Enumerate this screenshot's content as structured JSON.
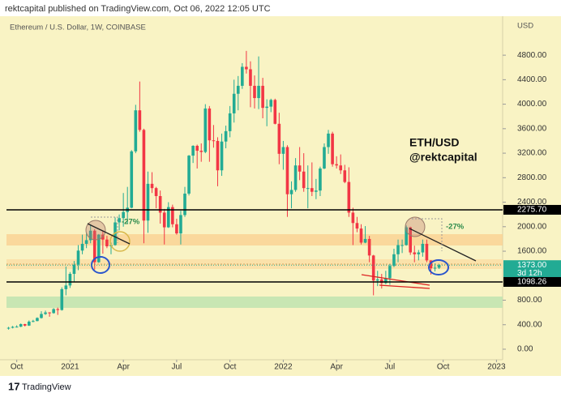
{
  "header": "rektcapital published on TradingView.com, Oct 06, 2022 12:05 UTC",
  "footer": "TradingView",
  "chart_data": {
    "type": "candlestick",
    "title": "Ethereum / U.S. Dollar, 1W, COINBASE",
    "y_unit": "USD",
    "watermark": [
      "ETH/USD",
      "@rektcapital"
    ],
    "annotations": [
      "-27%",
      "-27%"
    ],
    "up_color": "#22ab94",
    "down_color": "#f23645",
    "grid": false,
    "x": [
      0,
      1,
      2,
      3,
      4,
      5,
      6,
      7,
      8,
      9,
      10,
      11,
      12,
      13,
      14,
      15,
      16,
      17,
      18,
      19,
      20,
      21,
      22,
      23,
      24,
      25,
      26,
      27,
      28,
      29,
      30,
      31,
      32,
      33,
      34,
      35,
      36,
      37,
      38,
      39,
      40,
      41,
      42,
      43,
      44,
      45,
      46,
      47,
      48,
      49,
      50,
      51,
      52,
      53,
      54,
      55,
      56,
      57,
      58,
      59,
      60,
      61,
      62,
      63,
      64,
      65,
      66,
      67,
      68,
      69,
      70,
      71,
      72,
      73,
      74,
      75,
      76,
      77,
      78,
      79,
      80,
      81,
      82,
      83,
      84,
      85,
      86,
      87,
      88,
      89,
      90,
      91,
      92,
      93,
      94,
      95,
      96,
      97,
      98,
      99,
      100,
      101,
      102,
      103,
      104,
      105
    ],
    "open": [
      340,
      350,
      365,
      368,
      410,
      385,
      450,
      460,
      510,
      575,
      600,
      590,
      655,
      640,
      980,
      1040,
      1230,
      1380,
      1610,
      1720,
      1780,
      1935,
      1420,
      1870,
      1790,
      1680,
      1700,
      2070,
      2140,
      2240,
      2310,
      3230,
      3900,
      3580,
      2100,
      2700,
      2630,
      2500,
      2230,
      1990,
      2320,
      2040,
      1890,
      2190,
      2540,
      3160,
      3320,
      3240,
      3220,
      3930,
      3410,
      3400,
      2920,
      3390,
      3560,
      3850,
      4170,
      4300,
      4610,
      4570,
      4300,
      4100,
      4300,
      3940,
      3960,
      4070,
      3680,
      3190,
      3300,
      2530,
      2600,
      3000,
      2900,
      2630,
      2630,
      2570,
      2590,
      2950,
      3300,
      3520,
      3020,
      3000,
      2920,
      2730,
      2230,
      2060,
      1970,
      1740,
      1800,
      1530,
      1120,
      1140,
      1080,
      1160,
      1360,
      1550,
      1700,
      1700,
      1990,
      1580,
      1550,
      1580,
      1720,
      1450,
      1320,
      1330
    ],
    "high": [
      365,
      380,
      390,
      420,
      415,
      470,
      480,
      520,
      620,
      630,
      605,
      670,
      680,
      1010,
      1350,
      1260,
      1440,
      1700,
      1870,
      1900,
      2040,
      1960,
      1880,
      1940,
      1850,
      1740,
      2150,
      2200,
      2550,
      2650,
      3250,
      3990,
      4370,
      3600,
      2900,
      2890,
      2650,
      2590,
      2290,
      2400,
      2360,
      2130,
      2260,
      2650,
      3170,
      3330,
      3340,
      3360,
      4000,
      3970,
      3660,
      3460,
      3520,
      3650,
      3970,
      4400,
      4460,
      4670,
      4870,
      4700,
      4470,
      4780,
      4430,
      4080,
      4090,
      4090,
      3860,
      3400,
      3330,
      2740,
      3120,
      3300,
      3200,
      3000,
      3050,
      2780,
      2980,
      3360,
      3580,
      3550,
      3150,
      3180,
      3010,
      2970,
      2310,
      2160,
      2040,
      2010,
      1850,
      1540,
      1280,
      1230,
      1280,
      1390,
      1640,
      1790,
      1790,
      2020,
      2000,
      1690,
      1620,
      1790,
      1790,
      1450,
      1400,
      1390
    ],
    "low": [
      320,
      340,
      355,
      360,
      370,
      380,
      440,
      455,
      500,
      560,
      530,
      580,
      560,
      630,
      880,
      1000,
      1100,
      1290,
      1550,
      1650,
      1730,
      1300,
      1410,
      1560,
      1650,
      1550,
      1690,
      1940,
      2000,
      2050,
      2300,
      3200,
      3550,
      1730,
      1900,
      2550,
      2300,
      2050,
      1710,
      1980,
      1990,
      1870,
      1710,
      2160,
      2510,
      3040,
      2950,
      3060,
      3200,
      3060,
      3290,
      2660,
      2830,
      3280,
      3460,
      3700,
      3900,
      4250,
      4500,
      3950,
      3930,
      3920,
      3770,
      3640,
      3870,
      3670,
      3020,
      2930,
      2160,
      2300,
      2570,
      2760,
      2570,
      2300,
      2500,
      2450,
      2500,
      2940,
      3190,
      2980,
      2950,
      2860,
      2710,
      2160,
      1700,
      1910,
      1710,
      1730,
      1420,
      880,
      1030,
      990,
      1060,
      1050,
      1340,
      1420,
      1570,
      1690,
      1540,
      1420,
      1450,
      1510,
      1420,
      1220,
      1270,
      1310
    ],
    "close": [
      350,
      365,
      368,
      410,
      385,
      450,
      460,
      510,
      575,
      600,
      590,
      655,
      640,
      980,
      1040,
      1230,
      1380,
      1610,
      1720,
      1780,
      1935,
      1420,
      1870,
      1790,
      1680,
      1700,
      2070,
      2140,
      2240,
      2310,
      3230,
      3900,
      3580,
      2100,
      2700,
      2630,
      2500,
      2230,
      1990,
      2320,
      2040,
      1890,
      2190,
      2540,
      3160,
      3320,
      3240,
      3220,
      3930,
      3410,
      3400,
      2920,
      3390,
      3560,
      3850,
      4170,
      4300,
      4610,
      4570,
      4300,
      4100,
      4300,
      3940,
      3960,
      4070,
      3680,
      3190,
      3300,
      2530,
      2600,
      3000,
      2900,
      2630,
      2630,
      2570,
      2590,
      2950,
      3300,
      3520,
      3020,
      3000,
      2920,
      2730,
      2230,
      2060,
      1970,
      1740,
      1800,
      1530,
      1120,
      1140,
      1080,
      1160,
      1360,
      1550,
      1700,
      1700,
      1990,
      1580,
      1550,
      1580,
      1720,
      1450,
      1320,
      1330,
      1373
    ],
    "xlim": [
      -0.5,
      120.5
    ],
    "ylim": [
      -119,
      5410
    ],
    "xticks": [
      {
        "value": 2,
        "label": "Oct"
      },
      {
        "value": 15,
        "label": "2021"
      },
      {
        "value": 28,
        "label": "Apr"
      },
      {
        "value": 41,
        "label": "Jul"
      },
      {
        "value": 54,
        "label": "Oct"
      },
      {
        "value": 67,
        "label": "2022"
      },
      {
        "value": 80,
        "label": "Apr"
      },
      {
        "value": 93,
        "label": "Jul"
      },
      {
        "value": 106,
        "label": "Oct"
      },
      {
        "value": 119,
        "label": "2023"
      }
    ],
    "yticks": [
      {
        "value": 0,
        "label": "0.00"
      },
      {
        "value": 400,
        "label": "400.00"
      },
      {
        "value": 800,
        "label": "800.00"
      },
      {
        "value": 1600,
        "label": "1600.00"
      },
      {
        "value": 2000,
        "label": "2000.00"
      },
      {
        "value": 2400,
        "label": "2400.00"
      },
      {
        "value": 2800,
        "label": "2800.00"
      },
      {
        "value": 3200,
        "label": "3200.00"
      },
      {
        "value": 3600,
        "label": "3600.00"
      },
      {
        "value": 4000,
        "label": "4000.00"
      },
      {
        "value": 4400,
        "label": "4400.00"
      },
      {
        "value": 4800,
        "label": "4800.00"
      }
    ],
    "price_lines": [
      {
        "value": 2275.7,
        "label": "2275.70",
        "color": "#000000",
        "style": "solid"
      },
      {
        "value": 1373,
        "label": "1373.00",
        "color": "#22ab94",
        "style": "dotted",
        "sublabel": "3d 12h"
      },
      {
        "value": 1098.26,
        "label": "1098.26",
        "color": "#000000",
        "style": "solid"
      }
    ]
  }
}
